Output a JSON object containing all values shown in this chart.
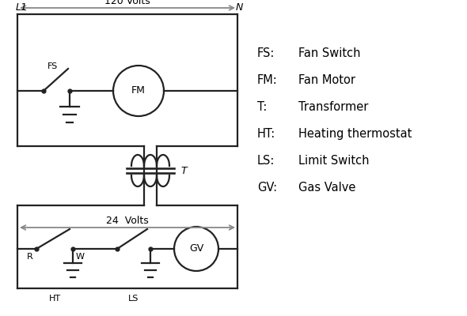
{
  "bg_color": "#ffffff",
  "line_color": "#404040",
  "line_color_dark": "#222222",
  "arrow_color": "#888888",
  "text_color": "#000000",
  "legend": {
    "FS": "Fan Switch",
    "FM": "Fan Motor",
    "T": "Transformer",
    "HT": "Heating thermostat",
    "LS": "Limit Switch",
    "GV": "Gas Valve"
  },
  "fig_w": 5.9,
  "fig_h": 4.0,
  "dpi": 100
}
